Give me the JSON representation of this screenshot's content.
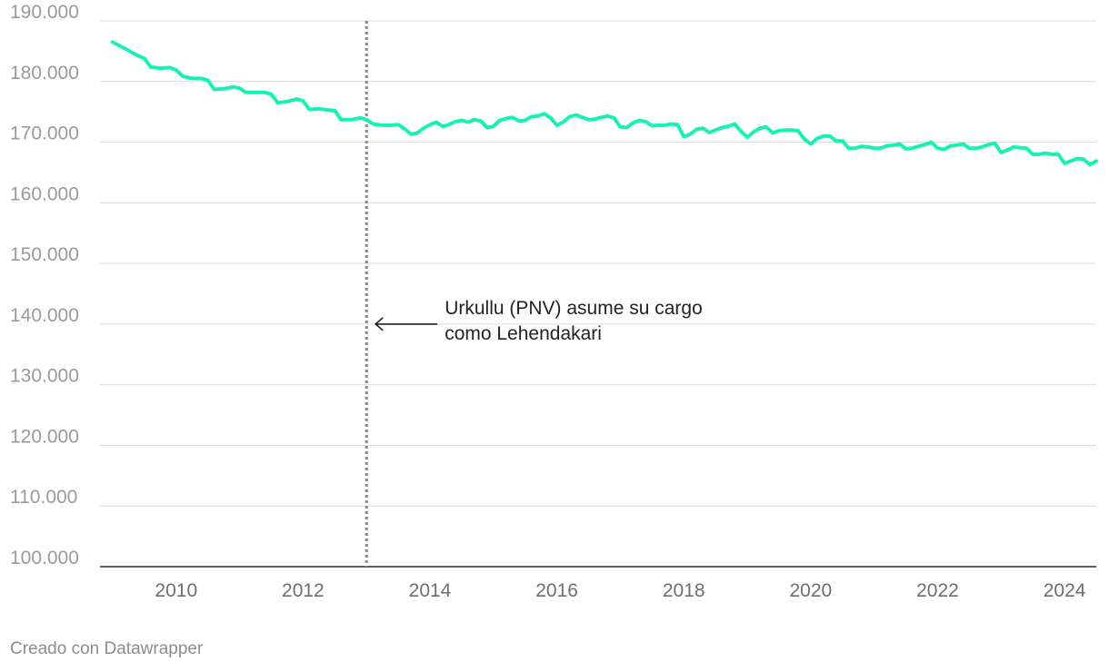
{
  "chart_data": {
    "type": "line",
    "title": "",
    "xlabel": "",
    "ylabel": "",
    "xlim": [
      2008.8,
      2024.5
    ],
    "ylim": [
      100000,
      190000
    ],
    "y_ticks": [
      100000,
      110000,
      120000,
      130000,
      140000,
      150000,
      160000,
      170000,
      180000,
      190000
    ],
    "y_tick_labels": [
      "100.000",
      "110.000",
      "120.000",
      "130.000",
      "140.000",
      "150.000",
      "160.000",
      "170.000",
      "180.000",
      "190.000"
    ],
    "x_ticks": [
      2010,
      2012,
      2014,
      2016,
      2018,
      2020,
      2022,
      2024
    ],
    "x_tick_labels": [
      "2010",
      "2012",
      "2014",
      "2016",
      "2018",
      "2020",
      "2022",
      "2024"
    ],
    "grid": true,
    "color": "#19f0b4",
    "series": [
      {
        "name": "",
        "points": [
          [
            2009.0,
            186500
          ],
          [
            2009.2,
            185400
          ],
          [
            2009.35,
            184500
          ],
          [
            2009.5,
            183800
          ],
          [
            2009.6,
            182400
          ],
          [
            2009.75,
            182200
          ],
          [
            2009.9,
            182300
          ],
          [
            2010.0,
            181900
          ],
          [
            2010.1,
            180900
          ],
          [
            2010.25,
            180500
          ],
          [
            2010.4,
            180500
          ],
          [
            2010.5,
            180200
          ],
          [
            2010.6,
            178700
          ],
          [
            2010.75,
            178800
          ],
          [
            2010.9,
            179100
          ],
          [
            2011.0,
            178900
          ],
          [
            2011.1,
            178200
          ],
          [
            2011.25,
            178200
          ],
          [
            2011.4,
            178200
          ],
          [
            2011.5,
            177900
          ],
          [
            2011.6,
            176500
          ],
          [
            2011.75,
            176700
          ],
          [
            2011.9,
            177100
          ],
          [
            2012.0,
            176800
          ],
          [
            2012.1,
            175400
          ],
          [
            2012.25,
            175500
          ],
          [
            2012.4,
            175300
          ],
          [
            2012.5,
            175200
          ],
          [
            2012.6,
            173700
          ],
          [
            2012.75,
            173700
          ],
          [
            2012.9,
            174000
          ],
          [
            2013.0,
            173700
          ],
          [
            2013.1,
            173000
          ],
          [
            2013.25,
            172800
          ],
          [
            2013.4,
            172800
          ],
          [
            2013.5,
            172900
          ],
          [
            2013.6,
            172200
          ],
          [
            2013.7,
            171300
          ],
          [
            2013.8,
            171500
          ],
          [
            2013.9,
            172300
          ],
          [
            2014.0,
            172900
          ],
          [
            2014.1,
            173300
          ],
          [
            2014.2,
            172600
          ],
          [
            2014.3,
            172900
          ],
          [
            2014.4,
            173400
          ],
          [
            2014.5,
            173600
          ],
          [
            2014.6,
            173300
          ],
          [
            2014.7,
            173700
          ],
          [
            2014.8,
            173500
          ],
          [
            2014.9,
            172400
          ],
          [
            2015.0,
            172600
          ],
          [
            2015.1,
            173600
          ],
          [
            2015.2,
            173900
          ],
          [
            2015.3,
            174100
          ],
          [
            2015.4,
            173500
          ],
          [
            2015.5,
            173600
          ],
          [
            2015.6,
            174200
          ],
          [
            2015.7,
            174300
          ],
          [
            2015.8,
            174700
          ],
          [
            2015.9,
            174000
          ],
          [
            2016.0,
            172800
          ],
          [
            2016.1,
            173300
          ],
          [
            2016.2,
            174200
          ],
          [
            2016.3,
            174500
          ],
          [
            2016.4,
            174100
          ],
          [
            2016.5,
            173700
          ],
          [
            2016.6,
            173800
          ],
          [
            2016.7,
            174100
          ],
          [
            2016.8,
            174300
          ],
          [
            2016.9,
            174000
          ],
          [
            2017.0,
            172500
          ],
          [
            2017.1,
            172400
          ],
          [
            2017.2,
            173200
          ],
          [
            2017.3,
            173600
          ],
          [
            2017.4,
            173400
          ],
          [
            2017.5,
            172700
          ],
          [
            2017.6,
            172800
          ],
          [
            2017.7,
            172800
          ],
          [
            2017.8,
            173000
          ],
          [
            2017.9,
            172900
          ],
          [
            2018.0,
            170900
          ],
          [
            2018.1,
            171300
          ],
          [
            2018.2,
            172100
          ],
          [
            2018.3,
            172300
          ],
          [
            2018.4,
            171600
          ],
          [
            2018.5,
            172000
          ],
          [
            2018.6,
            172400
          ],
          [
            2018.7,
            172600
          ],
          [
            2018.8,
            173000
          ],
          [
            2018.9,
            171800
          ],
          [
            2019.0,
            170800
          ],
          [
            2019.1,
            171700
          ],
          [
            2019.2,
            172300
          ],
          [
            2019.3,
            172500
          ],
          [
            2019.4,
            171500
          ],
          [
            2019.5,
            171900
          ],
          [
            2019.6,
            172000
          ],
          [
            2019.7,
            172000
          ],
          [
            2019.8,
            171900
          ],
          [
            2019.9,
            170500
          ],
          [
            2020.0,
            169700
          ],
          [
            2020.1,
            170600
          ],
          [
            2020.2,
            171000
          ],
          [
            2020.3,
            171000
          ],
          [
            2020.4,
            170200
          ],
          [
            2020.5,
            170200
          ],
          [
            2020.6,
            169000
          ],
          [
            2020.7,
            169000
          ],
          [
            2020.8,
            169300
          ],
          [
            2020.9,
            169200
          ],
          [
            2021.0,
            169000
          ],
          [
            2021.1,
            169000
          ],
          [
            2021.2,
            169400
          ],
          [
            2021.3,
            169500
          ],
          [
            2021.4,
            169700
          ],
          [
            2021.5,
            168900
          ],
          [
            2021.6,
            169000
          ],
          [
            2021.7,
            169300
          ],
          [
            2021.8,
            169600
          ],
          [
            2021.9,
            170000
          ],
          [
            2022.0,
            169000
          ],
          [
            2022.1,
            168800
          ],
          [
            2022.2,
            169400
          ],
          [
            2022.3,
            169500
          ],
          [
            2022.4,
            169700
          ],
          [
            2022.5,
            169000
          ],
          [
            2022.6,
            169000
          ],
          [
            2022.7,
            169200
          ],
          [
            2022.8,
            169600
          ],
          [
            2022.9,
            169800
          ],
          [
            2023.0,
            168300
          ],
          [
            2023.1,
            168700
          ],
          [
            2023.2,
            169200
          ],
          [
            2023.3,
            169100
          ],
          [
            2023.4,
            169000
          ],
          [
            2023.5,
            168000
          ],
          [
            2023.6,
            168000
          ],
          [
            2023.7,
            168200
          ],
          [
            2023.8,
            168000
          ],
          [
            2023.9,
            168000
          ],
          [
            2024.0,
            166500
          ],
          [
            2024.1,
            166900
          ],
          [
            2024.2,
            167300
          ],
          [
            2024.3,
            167200
          ],
          [
            2024.4,
            166300
          ],
          [
            2024.5,
            166900
          ]
        ]
      }
    ],
    "annotations": [
      {
        "x": 2013.0,
        "kind": "vertical-dotted-line",
        "arrow_y": 140000,
        "lines": [
          "Urkullu (PNV) asume su cargo",
          "como Lehendakari"
        ]
      }
    ]
  },
  "footer": {
    "credit": "Creado con Datawrapper"
  }
}
